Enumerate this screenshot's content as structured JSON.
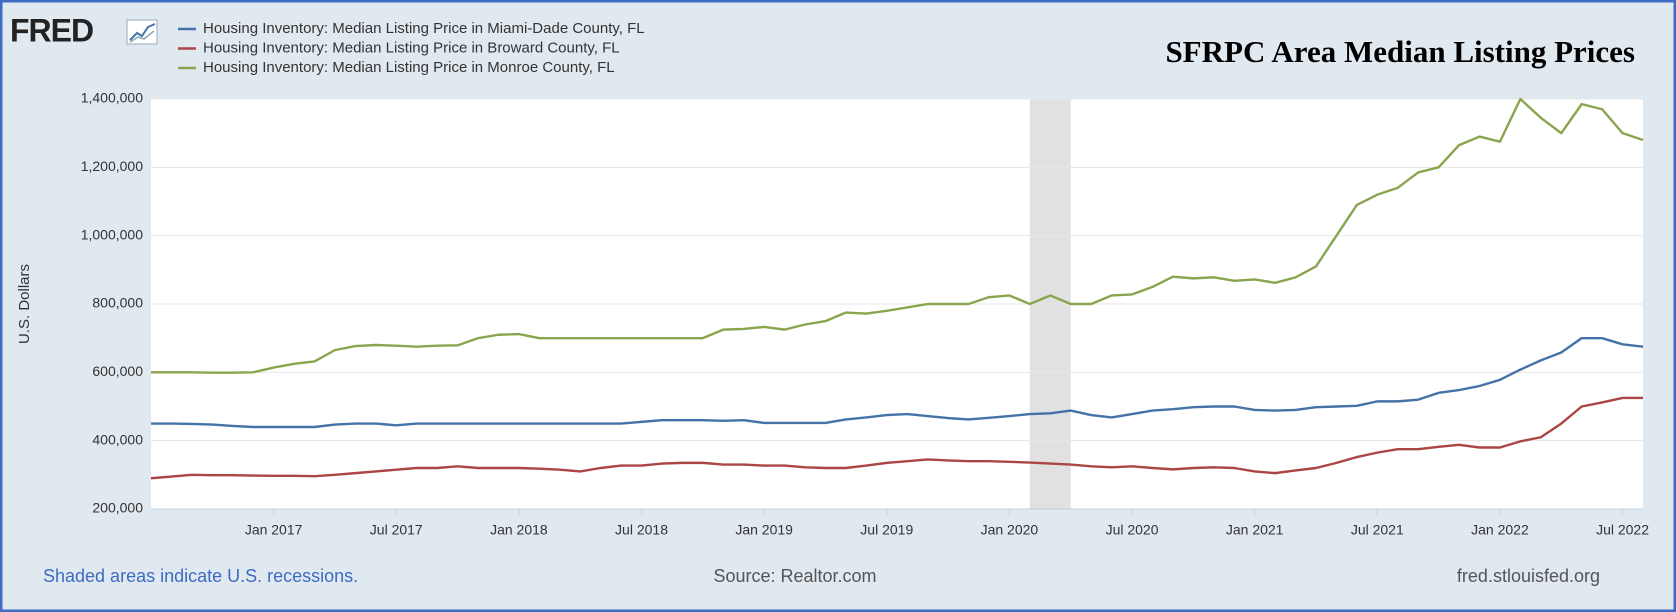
{
  "chart_data": {
    "type": "line",
    "logo": "FRED",
    "title": "SFRPC Area Median Listing Prices",
    "y_label": "U.S. Dollars",
    "note": "Shaded areas indicate U.S. recessions.",
    "source": "Source: Realtor.com",
    "site": "fred.stlouisfed.org",
    "x": [
      "2016-07",
      "2016-08",
      "2016-09",
      "2016-10",
      "2016-11",
      "2016-12",
      "2017-01",
      "2017-02",
      "2017-03",
      "2017-04",
      "2017-05",
      "2017-06",
      "2017-07",
      "2017-08",
      "2017-09",
      "2017-10",
      "2017-11",
      "2017-12",
      "2018-01",
      "2018-02",
      "2018-03",
      "2018-04",
      "2018-05",
      "2018-06",
      "2018-07",
      "2018-08",
      "2018-09",
      "2018-10",
      "2018-11",
      "2018-12",
      "2019-01",
      "2019-02",
      "2019-03",
      "2019-04",
      "2019-05",
      "2019-06",
      "2019-07",
      "2019-08",
      "2019-09",
      "2019-10",
      "2019-11",
      "2019-12",
      "2020-01",
      "2020-02",
      "2020-03",
      "2020-04",
      "2020-05",
      "2020-06",
      "2020-07",
      "2020-08",
      "2020-09",
      "2020-10",
      "2020-11",
      "2020-12",
      "2021-01",
      "2021-02",
      "2021-03",
      "2021-04",
      "2021-05",
      "2021-06",
      "2021-07",
      "2021-08",
      "2021-09",
      "2021-10",
      "2021-11",
      "2021-12",
      "2022-01",
      "2022-02",
      "2022-03",
      "2022-04",
      "2022-05",
      "2022-06",
      "2022-07",
      "2022-08"
    ],
    "series": [
      {
        "name": "Housing Inventory: Median Listing Price in Miami-Dade County, FL",
        "color": "#4572a7",
        "values": [
          450000,
          450000,
          449000,
          447000,
          443000,
          440000,
          440000,
          440000,
          440000,
          447000,
          450000,
          450000,
          445000,
          450000,
          450000,
          450000,
          450000,
          450000,
          450000,
          450000,
          450000,
          450000,
          450000,
          450000,
          455000,
          460000,
          460000,
          460000,
          458000,
          460000,
          452000,
          452000,
          452000,
          452000,
          462000,
          468000,
          475000,
          478000,
          472000,
          466000,
          462000,
          467000,
          472000,
          478000,
          480000,
          488000,
          475000,
          468000,
          478000,
          488000,
          492000,
          498000,
          500000,
          500000,
          490000,
          488000,
          490000,
          498000,
          500000,
          502000,
          515000,
          515000,
          520000,
          540000,
          548000,
          560000,
          578000,
          608000,
          635000,
          658000,
          700000,
          700000,
          682000,
          675000
        ]
      },
      {
        "name": "Housing Inventory: Median Listing Price in Broward County, FL",
        "color": "#aa4643",
        "values": [
          290000,
          295000,
          300000,
          299000,
          299000,
          298000,
          297000,
          297000,
          296000,
          300000,
          305000,
          310000,
          315000,
          320000,
          320000,
          325000,
          320000,
          320000,
          320000,
          318000,
          315000,
          310000,
          320000,
          327000,
          327000,
          333000,
          335000,
          335000,
          330000,
          330000,
          327000,
          327000,
          322000,
          320000,
          320000,
          327000,
          335000,
          340000,
          345000,
          342000,
          340000,
          340000,
          338000,
          336000,
          333000,
          330000,
          325000,
          322000,
          325000,
          320000,
          316000,
          320000,
          322000,
          320000,
          310000,
          305000,
          313000,
          320000,
          335000,
          352000,
          365000,
          375000,
          375000,
          382000,
          388000,
          380000,
          380000,
          398000,
          410000,
          450000,
          500000,
          512000,
          525000,
          525000
        ]
      },
      {
        "name": "Housing Inventory: Median Listing Price in Monroe County, FL",
        "color": "#89a54e",
        "values": [
          600000,
          600000,
          600000,
          599000,
          599000,
          600000,
          614000,
          625000,
          632000,
          665000,
          677000,
          680000,
          678000,
          675000,
          678000,
          679000,
          700000,
          710000,
          712000,
          700000,
          700000,
          700000,
          700000,
          700000,
          700000,
          700000,
          700000,
          700000,
          725000,
          727000,
          733000,
          725000,
          740000,
          750000,
          775000,
          772000,
          780000,
          790000,
          800000,
          800000,
          800000,
          820000,
          825000,
          800000,
          825000,
          800000,
          800000,
          825000,
          828000,
          850000,
          880000,
          875000,
          878000,
          868000,
          872000,
          862000,
          878000,
          910000,
          1000000,
          1090000,
          1120000,
          1140000,
          1185000,
          1200000,
          1265000,
          1290000,
          1275000,
          1400000,
          1345000,
          1300000,
          1385000,
          1370000,
          1300000,
          1280000
        ]
      }
    ],
    "recessions": [
      [
        "2020-02",
        "2020-04"
      ]
    ],
    "xlim": [
      "2016-07",
      "2022-08"
    ],
    "xticks": [
      {
        "value": "2017-01",
        "label": "Jan 2017"
      },
      {
        "value": "2017-07",
        "label": "Jul 2017"
      },
      {
        "value": "2018-01",
        "label": "Jan 2018"
      },
      {
        "value": "2018-07",
        "label": "Jul 2018"
      },
      {
        "value": "2019-01",
        "label": "Jan 2019"
      },
      {
        "value": "2019-07",
        "label": "Jul 2019"
      },
      {
        "value": "2020-01",
        "label": "Jan 2020"
      },
      {
        "value": "2020-07",
        "label": "Jul 2020"
      },
      {
        "value": "2021-01",
        "label": "Jan 2021"
      },
      {
        "value": "2021-07",
        "label": "Jul 2021"
      },
      {
        "value": "2022-01",
        "label": "Jan 2022"
      },
      {
        "value": "2022-07",
        "label": "Jul 2022"
      }
    ],
    "ylim": [
      200000,
      1400000
    ],
    "yticks": [
      {
        "value": 200000,
        "label": "200,000"
      },
      {
        "value": 400000,
        "label": "400,000"
      },
      {
        "value": 600000,
        "label": "600,000"
      },
      {
        "value": 800000,
        "label": "800,000"
      },
      {
        "value": 1000000,
        "label": "1,000,000"
      },
      {
        "value": 1200000,
        "label": "1,200,000"
      },
      {
        "value": 1400000,
        "label": "1,400,000"
      }
    ],
    "grid": true
  }
}
